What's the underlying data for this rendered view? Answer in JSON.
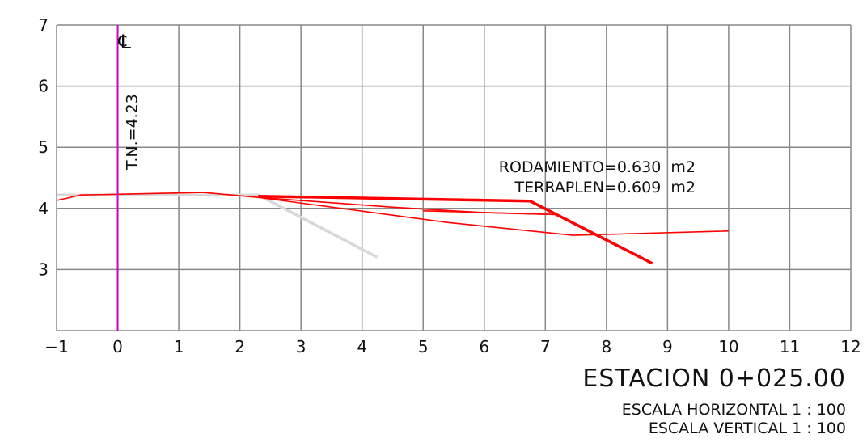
{
  "chart_data": {
    "type": "line",
    "title": "ESTACION 0+025.00",
    "xlim": [
      -1,
      12
    ],
    "ylim": [
      2,
      7
    ],
    "x_ticks": [
      "−1",
      "0",
      "1",
      "2",
      "3",
      "4",
      "5",
      "6",
      "7",
      "8",
      "9",
      "10",
      "11",
      "12"
    ],
    "y_ticks": [
      "3",
      "4",
      "5",
      "6",
      "7"
    ],
    "grid": true,
    "centerline": {
      "x": 0,
      "symbol": "℄",
      "label": "T.N.=4.23"
    },
    "annotations": [
      "RODAMIENTO=0.630  m2",
      "TERRAPLEN=0.609  m2"
    ],
    "scale_notes": [
      "ESCALA HORIZONTAL 1 : 100",
      "ESCALA VERTICAL 1 : 100"
    ],
    "series": [
      {
        "role": "terrain",
        "points": [
          [
            -1,
            4.13
          ],
          [
            -0.6,
            4.22
          ],
          [
            1.4,
            4.26
          ],
          [
            2.3,
            4.18
          ],
          [
            5.4,
            3.77
          ],
          [
            7.45,
            3.56
          ],
          [
            10,
            3.63
          ]
        ]
      },
      {
        "role": "subgrade",
        "points": [
          [
            2.3,
            4.18
          ],
          [
            4.5,
            4.02
          ],
          [
            6,
            3.93
          ],
          [
            7.2,
            3.9
          ]
        ]
      },
      {
        "role": "layer-top",
        "points": [
          [
            5,
            3.96
          ],
          [
            7.2,
            3.9
          ]
        ]
      },
      {
        "role": "road-design",
        "points": [
          [
            2.3,
            4.2
          ],
          [
            6.75,
            4.12
          ],
          [
            8.75,
            3.1
          ]
        ]
      },
      {
        "role": "reference",
        "points": [
          [
            -1,
            4.22
          ],
          [
            2.3,
            4.22
          ],
          [
            4.25,
            3.2
          ]
        ]
      }
    ],
    "colors": {
      "grid": "#888888",
      "terrain": "#ff0000",
      "road": "#ff0000",
      "reference": "#d8d8d8",
      "centerline": "#cc00cc"
    }
  }
}
